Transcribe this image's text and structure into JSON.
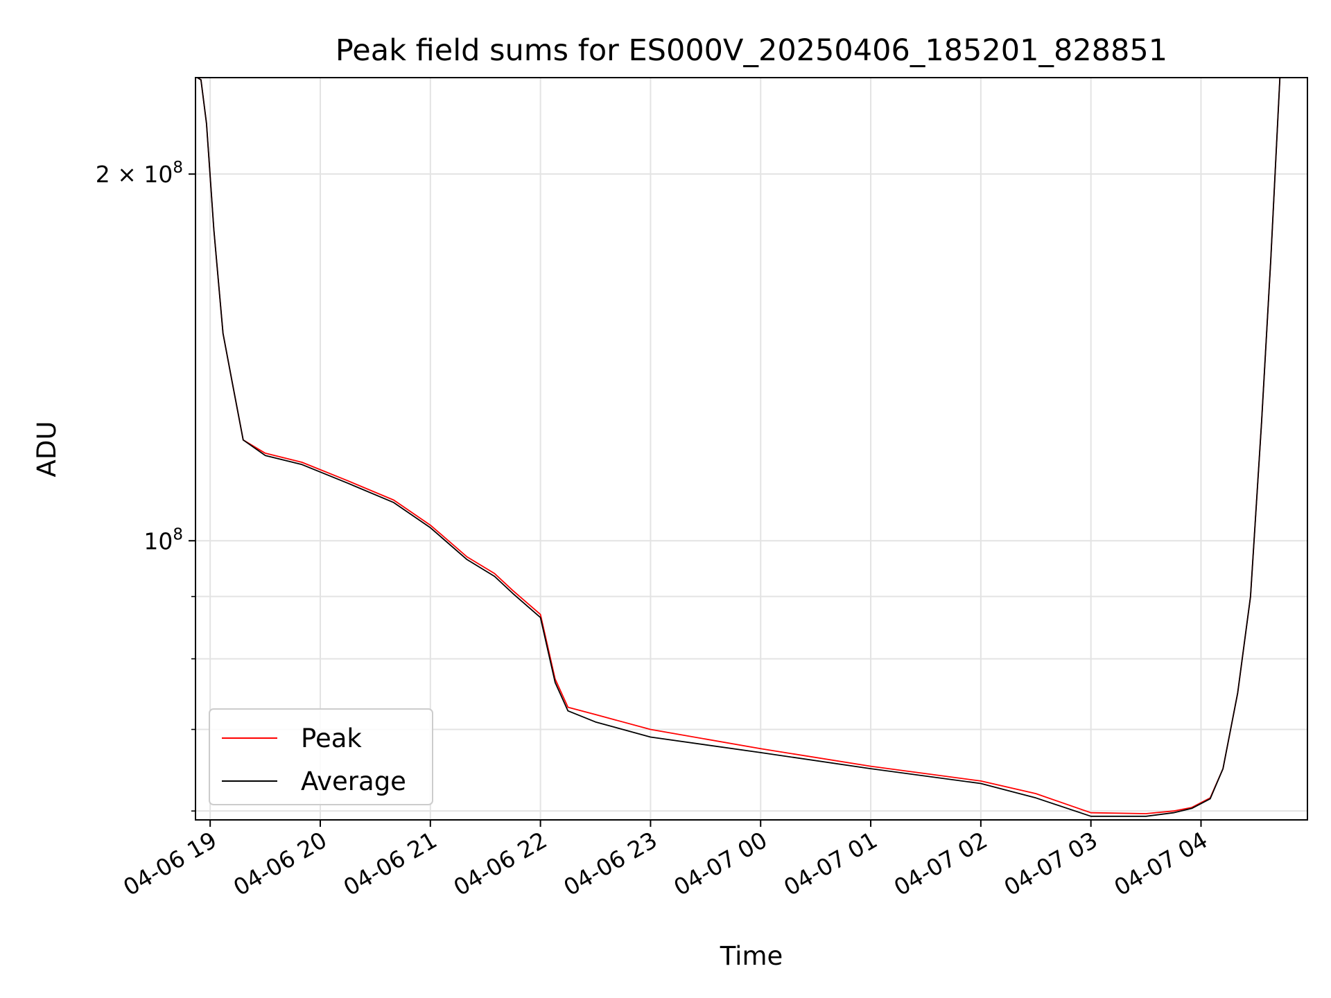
{
  "chart_data": {
    "type": "line",
    "title": "Peak field sums for ES000V_20250406_185201_828851",
    "xlabel": "Time",
    "ylabel": "ADU",
    "y_scale": "log",
    "grid": true,
    "legend_position": "lower-left",
    "xlim": [
      "2025-04-06 18:52",
      "2025-04-07 04:58"
    ],
    "ylim": [
      59000000,
      240000000
    ],
    "x_ticks": [
      "04-06 19",
      "04-06 20",
      "04-06 21",
      "04-06 22",
      "04-06 23",
      "04-07 00",
      "04-07 01",
      "04-07 02",
      "04-07 03",
      "04-07 04"
    ],
    "y_tick_labels": [
      {
        "value": 200000000,
        "mantissa": "2",
        "times": "×",
        "base": "10",
        "exponent": "8"
      },
      {
        "value": 100000000,
        "mantissa": "",
        "times": "",
        "base": "10",
        "exponent": "8"
      }
    ],
    "y_minor_ticks": [
      60000000,
      70000000,
      80000000,
      90000000,
      300000000
    ],
    "x": [
      "2025-04-06 18:52",
      "2025-04-06 18:53",
      "2025-04-06 18:55",
      "2025-04-06 18:58",
      "2025-04-06 19:02",
      "2025-04-06 19:07",
      "2025-04-06 19:12",
      "2025-04-06 19:18",
      "2025-04-06 19:30",
      "2025-04-06 19:50",
      "2025-04-06 20:15",
      "2025-04-06 20:40",
      "2025-04-06 21:00",
      "2025-04-06 21:20",
      "2025-04-06 21:35",
      "2025-04-06 21:45",
      "2025-04-06 22:00",
      "2025-04-06 22:08",
      "2025-04-06 22:15",
      "2025-04-06 22:30",
      "2025-04-06 23:00",
      "2025-04-07 00:00",
      "2025-04-07 01:00",
      "2025-04-07 02:00",
      "2025-04-07 02:30",
      "2025-04-07 03:00",
      "2025-04-07 03:30",
      "2025-04-07 03:45",
      "2025-04-07 03:55",
      "2025-04-07 04:05",
      "2025-04-07 04:12",
      "2025-04-07 04:20",
      "2025-04-07 04:27",
      "2025-04-07 04:33",
      "2025-04-07 04:38",
      "2025-04-07 04:43"
    ],
    "series": [
      {
        "name": "Peak",
        "color": "#ff0000",
        "values": [
          240000000,
          240000000,
          239000000,
          220000000,
          180000000,
          148000000,
          135000000,
          121000000,
          118000000,
          116000000,
          112000000,
          108000000,
          103000000,
          97000000,
          94000000,
          91000000,
          87000000,
          77000000,
          73000000,
          72000000,
          70000000,
          67500000,
          65300000,
          63500000,
          62000000,
          59800000,
          59700000,
          60000000,
          60400000,
          61500000,
          65000000,
          75000000,
          90000000,
          125000000,
          170000000,
          240000000
        ]
      },
      {
        "name": "Average",
        "color": "#000000",
        "values": [
          240000000,
          240000000,
          239000000,
          220000000,
          180000000,
          148000000,
          135000000,
          121000000,
          117500000,
          115500000,
          111500000,
          107500000,
          102500000,
          96500000,
          93500000,
          90500000,
          86500000,
          76500000,
          72500000,
          71000000,
          69000000,
          67000000,
          65000000,
          63200000,
          61500000,
          59400000,
          59400000,
          59800000,
          60300000,
          61400000,
          65000000,
          75000000,
          90000000,
          125000000,
          170000000,
          240000000
        ]
      }
    ]
  }
}
